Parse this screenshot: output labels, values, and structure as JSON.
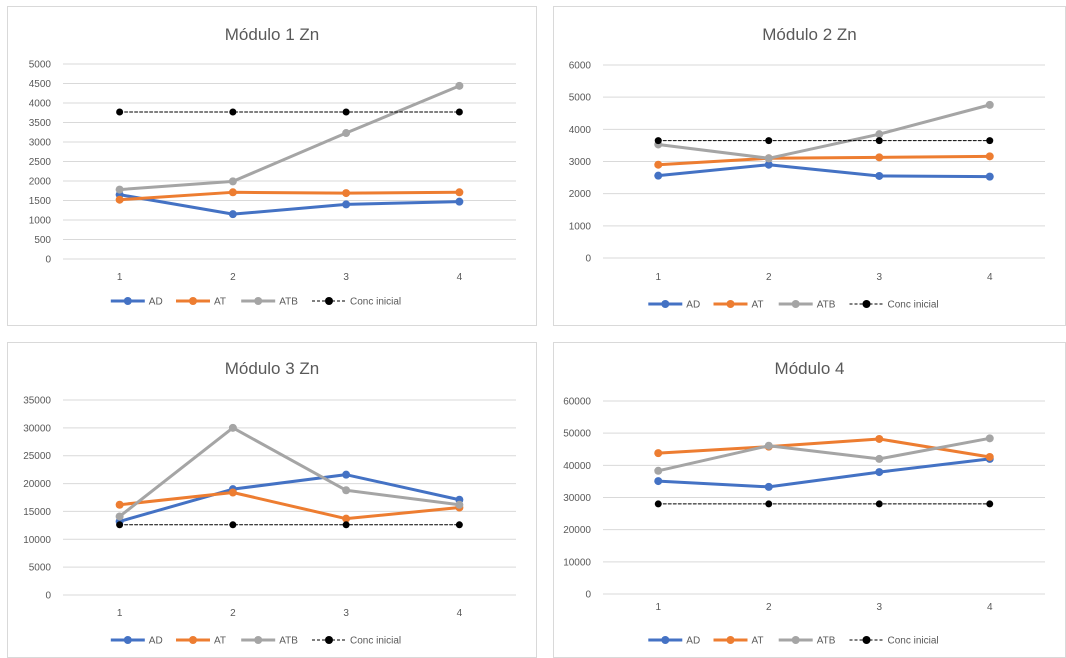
{
  "colors": {
    "AD": "#4472c4",
    "AT": "#ed7d31",
    "ATB": "#a5a5a5",
    "Conc inicial": "#000000",
    "grid": "#d9d9d9",
    "text": "#595959"
  },
  "chart_data": [
    {
      "type": "line",
      "title": "Módulo 1 Zn",
      "categories": [
        "1",
        "2",
        "3",
        "4"
      ],
      "ylim": [
        0,
        5000
      ],
      "yticks": [
        0,
        500,
        1000,
        1500,
        2000,
        2500,
        3000,
        3500,
        4000,
        4500,
        5000
      ],
      "grid": true,
      "legend": "bottom",
      "series": [
        {
          "name": "AD",
          "values": [
            1650,
            1150,
            1400,
            1470
          ]
        },
        {
          "name": "AT",
          "values": [
            1520,
            1710,
            1690,
            1710
          ]
        },
        {
          "name": "ATB",
          "values": [
            1780,
            1990,
            3230,
            4440
          ]
        },
        {
          "name": "Conc inicial",
          "values": [
            3770,
            3770,
            3770,
            3770
          ],
          "dashed": true
        }
      ]
    },
    {
      "type": "line",
      "title": "Módulo 2 Zn",
      "categories": [
        "1",
        "2",
        "3",
        "4"
      ],
      "ylim": [
        0,
        6000
      ],
      "yticks": [
        0,
        1000,
        2000,
        3000,
        4000,
        5000,
        6000
      ],
      "grid": true,
      "legend": "bottom",
      "series": [
        {
          "name": "AD",
          "values": [
            2560,
            2900,
            2550,
            2530
          ]
        },
        {
          "name": "AT",
          "values": [
            2900,
            3100,
            3130,
            3160
          ]
        },
        {
          "name": "ATB",
          "values": [
            3530,
            3100,
            3850,
            4760
          ]
        },
        {
          "name": "Conc inicial",
          "values": [
            3650,
            3650,
            3650,
            3650
          ],
          "dashed": true
        }
      ]
    },
    {
      "type": "line",
      "title": "Módulo 3 Zn",
      "categories": [
        "1",
        "2",
        "3",
        "4"
      ],
      "ylim": [
        0,
        35000
      ],
      "yticks": [
        0,
        5000,
        10000,
        15000,
        20000,
        25000,
        30000,
        35000
      ],
      "grid": true,
      "legend": "bottom",
      "series": [
        {
          "name": "AD",
          "values": [
            13200,
            19000,
            21600,
            17100
          ]
        },
        {
          "name": "AT",
          "values": [
            16200,
            18400,
            13700,
            15700
          ]
        },
        {
          "name": "ATB",
          "values": [
            14100,
            30000,
            18800,
            16200
          ]
        },
        {
          "name": "Conc inicial",
          "values": [
            12600,
            12600,
            12600,
            12600
          ],
          "dashed": true
        }
      ]
    },
    {
      "type": "line",
      "title": "Módulo 4",
      "categories": [
        "1",
        "2",
        "3",
        "4"
      ],
      "ylim": [
        0,
        60000
      ],
      "yticks": [
        0,
        10000,
        20000,
        30000,
        40000,
        50000,
        60000
      ],
      "grid": true,
      "legend": "bottom",
      "series": [
        {
          "name": "AD",
          "values": [
            35100,
            33300,
            37900,
            42000
          ]
        },
        {
          "name": "AT",
          "values": [
            43800,
            45800,
            48200,
            42600
          ]
        },
        {
          "name": "ATB",
          "values": [
            38300,
            46100,
            42000,
            48400
          ]
        },
        {
          "name": "Conc inicial",
          "values": [
            28000,
            28000,
            28000,
            28000
          ],
          "dashed": true
        }
      ]
    }
  ]
}
